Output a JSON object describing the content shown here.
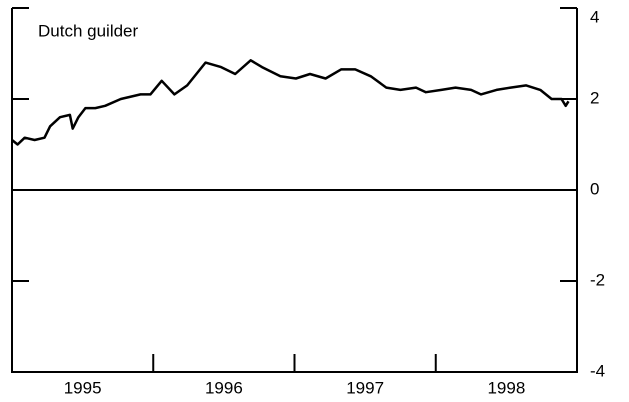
{
  "chart_data": {
    "type": "line",
    "title": "Dutch guilder",
    "x": [
      1995.0,
      1995.04,
      1995.09,
      1995.16,
      1995.23,
      1995.27,
      1995.34,
      1995.41,
      1995.43,
      1995.47,
      1995.52,
      1995.59,
      1995.66,
      1995.77,
      1995.91,
      1995.98,
      1996.06,
      1996.15,
      1996.24,
      1996.37,
      1996.48,
      1996.58,
      1996.69,
      1996.77,
      1996.9,
      1997.01,
      1997.11,
      1997.22,
      1997.33,
      1997.43,
      1997.54,
      1997.65,
      1997.75,
      1997.86,
      1997.93,
      1998.04,
      1998.14,
      1998.25,
      1998.32,
      1998.43,
      1998.53,
      1998.64,
      1998.74,
      1998.82,
      1998.89,
      1998.92,
      1998.94
    ],
    "series": [
      {
        "name": "Dutch guilder",
        "color": "#000000",
        "values": [
          1.1,
          1.0,
          1.15,
          1.1,
          1.15,
          1.4,
          1.6,
          1.65,
          1.35,
          1.6,
          1.8,
          1.8,
          1.85,
          2.0,
          2.1,
          2.1,
          2.4,
          2.1,
          2.3,
          2.8,
          2.7,
          2.55,
          2.85,
          2.7,
          2.5,
          2.45,
          2.55,
          2.45,
          2.65,
          2.65,
          2.5,
          2.25,
          2.2,
          2.25,
          2.15,
          2.2,
          2.25,
          2.2,
          2.1,
          2.2,
          2.25,
          2.3,
          2.2,
          2.0,
          2.0,
          1.85,
          1.95
        ]
      }
    ],
    "xlim": [
      1995,
      1999
    ],
    "xticks": [
      {
        "value": 1995.5,
        "label": "1995"
      },
      {
        "value": 1996.5,
        "label": "1996"
      },
      {
        "value": 1997.5,
        "label": "1997"
      },
      {
        "value": 1998.5,
        "label": "1998"
      }
    ],
    "year_boundaries": [
      1996,
      1997,
      1998
    ],
    "ylim": [
      -4,
      4
    ],
    "yticks": [
      4,
      2,
      0,
      -2,
      -4
    ],
    "y_axis_side": "right"
  }
}
